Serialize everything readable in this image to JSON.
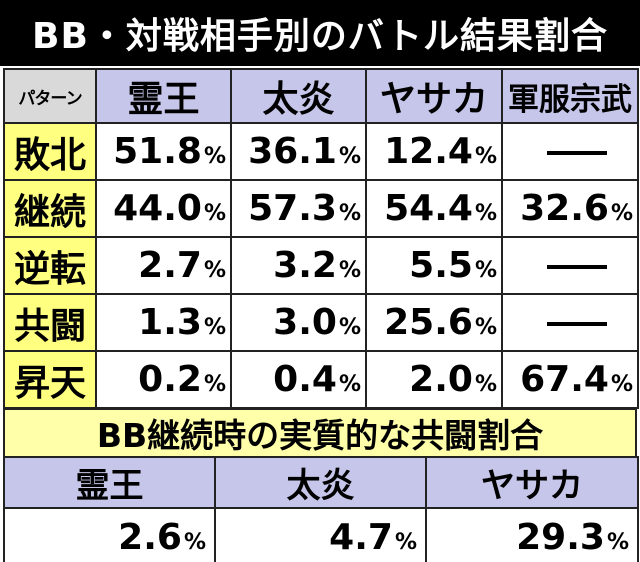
{
  "title": "BB・対戦相手別のバトル結果割合",
  "main_table": {
    "corner_label": "パターン",
    "columns": [
      "霊王",
      "太炎",
      "ヤサカ",
      "軍服宗武"
    ],
    "rows": [
      {
        "label": "敗北",
        "values": [
          "51.8",
          "36.1",
          "12.4",
          null
        ]
      },
      {
        "label": "継続",
        "values": [
          "44.0",
          "57.3",
          "54.4",
          "32.6"
        ]
      },
      {
        "label": "逆転",
        "values": [
          "2.7",
          "3.2",
          "5.5",
          null
        ]
      },
      {
        "label": "共闘",
        "values": [
          "1.3",
          "3.0",
          "25.6",
          null
        ]
      },
      {
        "label": "昇天",
        "values": [
          "0.2",
          "0.4",
          "2.0",
          "67.4"
        ]
      }
    ],
    "unit": "%"
  },
  "sub_table": {
    "title": "BB継続時の実質的な共闘割合",
    "columns": [
      "霊王",
      "太炎",
      "ヤサカ"
    ],
    "values": [
      "2.6",
      "4.7",
      "29.3"
    ],
    "unit": "%"
  },
  "colors": {
    "title_bg": "#000000",
    "header_bg": "#c6c6ea",
    "row_head_bg": "#ffff80",
    "corner_bg": "#d9d9d9",
    "sub_title_bg": "#ffffaa"
  }
}
